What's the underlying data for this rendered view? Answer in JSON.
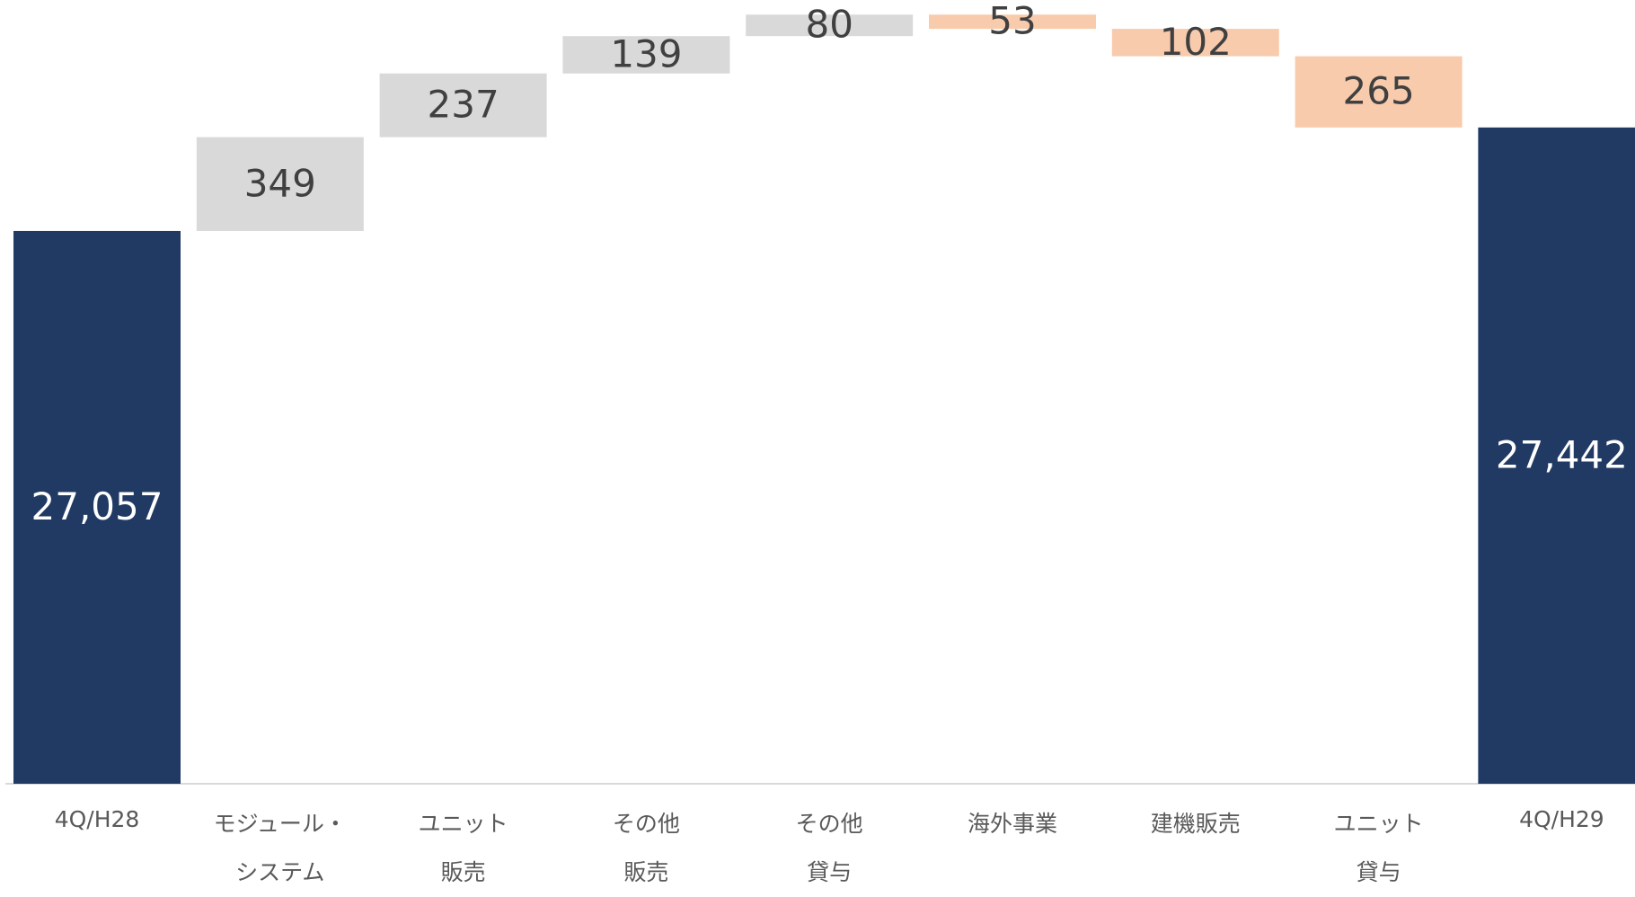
{
  "chart_data": {
    "type": "waterfall",
    "categories": [
      "4Q/H28",
      "モジュール・\nシステム",
      "ユニット\n販売",
      "その他\n販売",
      "その他\n貸与",
      "海外事業",
      "建機販売",
      "ユニット\n貸与",
      "4Q/H29"
    ],
    "values": [
      27057,
      349,
      237,
      139,
      80,
      -53,
      -102,
      -265,
      27442
    ],
    "value_labels": [
      "27,057",
      "349",
      "237",
      "139",
      "80",
      "53",
      "102",
      "265",
      "27,442"
    ],
    "colors": {
      "total": "#213a63",
      "increase": "#d9d9d9",
      "decrease": "#f8cbad"
    },
    "ylim": [
      25000,
      28000
    ]
  }
}
